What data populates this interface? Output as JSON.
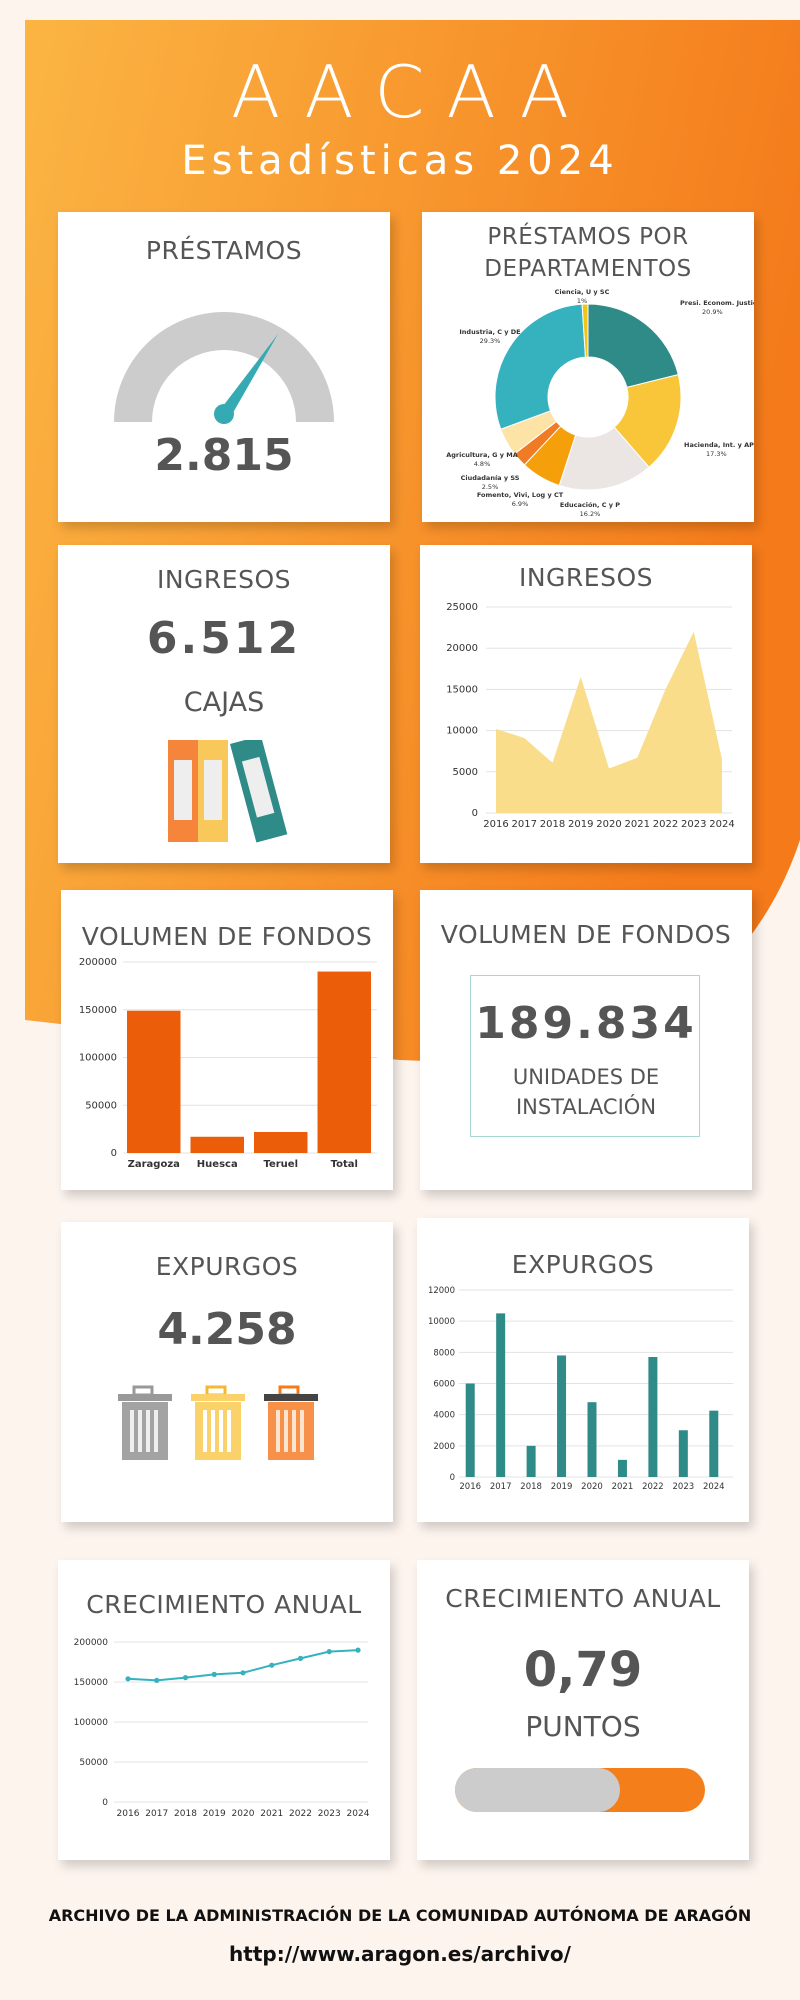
{
  "header": {
    "title": "AACAA",
    "subtitle": "Estadísticas 2024"
  },
  "prestamos": {
    "title": "PRÉSTAMOS",
    "value": "2.815"
  },
  "prestamos_dep": {
    "title_line1": "PRÉSTAMOS POR",
    "title_line2": "DEPARTAMENTOS"
  },
  "ingresos": {
    "title": "INGRESOS",
    "value": "6.512",
    "unit": "CAJAS"
  },
  "ingresos_chart": {
    "title": "INGRESOS"
  },
  "volumen_chart": {
    "title": "VOLUMEN DE FONDOS"
  },
  "volumen": {
    "title": "VOLUMEN DE FONDOS",
    "value": "189.834",
    "unit_line1": "UNIDADES DE",
    "unit_line2": "INSTALACIÓN"
  },
  "expurgos": {
    "title": "EXPURGOS",
    "value": "4.258"
  },
  "expurgos_chart": {
    "title": "EXPURGOS"
  },
  "crecimiento_chart": {
    "title": "CRECIMIENTO ANUAL"
  },
  "crecimiento": {
    "title": "CRECIMIENTO ANUAL",
    "value": "0,79",
    "unit": "PUNTOS",
    "progress": 0.66
  },
  "footer": {
    "line1": "ARCHIVO DE LA ADMINISTRACIÓN DE LA COMUNIDAD AUTÓNOMA DE ARAGÓN",
    "line2": "http://www.aragon.es/archivo/"
  },
  "colors": {
    "orange": "#f47e1a",
    "teal": "#2e8b87",
    "yellow": "#f7cc4d",
    "gray": "#cccccc",
    "light_yellow": "#f9dd8a",
    "bar_orange": "#ec5d0a"
  },
  "chart_data": [
    {
      "type": "pie",
      "labels": [
        "Presi. Econom. Justicia",
        "Hacienda, Int. y AP",
        "Educación, C y P",
        "Fomento, Vivi, Log y CT",
        "Ciudadanía y SS",
        "Agricultura, G y MA",
        "Industria, C y DE",
        "Ciencia, U y SC"
      ],
      "values": [
        20.9,
        17.3,
        16.2,
        6.9,
        2.5,
        4.8,
        29.3,
        1
      ],
      "value_labels": [
        "20.9%",
        "17.3%",
        "16.2%",
        "6.9%",
        "2.5%",
        "4.8%",
        "29.3%",
        "1%"
      ],
      "colors": [
        "#2e8b87",
        "#f9c63a",
        "#ebe6e4",
        "#f5a00a",
        "#f07b25",
        "#fde3a5",
        "#35b2bd",
        "#f0c419"
      ]
    },
    {
      "type": "area",
      "x": [
        "2016",
        "2017",
        "2018",
        "2019",
        "2020",
        "2021",
        "2022",
        "2023",
        "2024"
      ],
      "values": [
        10200,
        9100,
        6100,
        16500,
        5400,
        6700,
        15000,
        22000,
        6500
      ],
      "ylim": [
        0,
        25000
      ],
      "yticks": [
        0,
        5000,
        10000,
        15000,
        20000,
        25000
      ]
    },
    {
      "type": "bar",
      "categories": [
        "Zaragoza",
        "Huesca",
        "Teruel",
        "Total"
      ],
      "values": [
        149000,
        17000,
        22000,
        190000
      ],
      "ylim": [
        0,
        200000
      ],
      "yticks": [
        0,
        50000,
        100000,
        150000,
        200000
      ]
    },
    {
      "type": "bar",
      "categories": [
        "2016",
        "2017",
        "2018",
        "2019",
        "2020",
        "2021",
        "2022",
        "2023",
        "2024"
      ],
      "values": [
        6000,
        10500,
        2000,
        7800,
        4800,
        1100,
        7700,
        3000,
        4258
      ],
      "ylim": [
        0,
        12000
      ],
      "yticks": [
        0,
        2000,
        4000,
        6000,
        8000,
        10000,
        12000
      ]
    },
    {
      "type": "line",
      "x": [
        "2016",
        "2017",
        "2018",
        "2019",
        "2020",
        "2021",
        "2022",
        "2023",
        "2024"
      ],
      "values": [
        154000,
        152000,
        155500,
        159500,
        161500,
        171000,
        179500,
        188000,
        189834
      ],
      "ylim": [
        0,
        200000
      ],
      "yticks": [
        0,
        50000,
        100000,
        150000,
        200000
      ]
    }
  ]
}
